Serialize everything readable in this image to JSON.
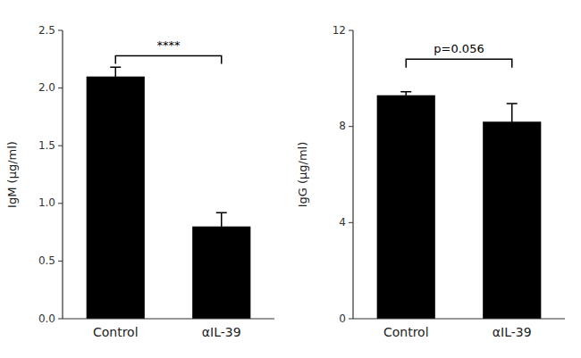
{
  "chart_data": [
    {
      "type": "bar",
      "categories": [
        "Control",
        "αIL-39"
      ],
      "values": [
        2.1,
        0.8
      ],
      "errors": [
        0.08,
        0.12
      ],
      "color": "#000000",
      "ylabel": "IgM (μg/ml)",
      "ylim": [
        0,
        2.5
      ],
      "yticks": [
        {
          "value": 0,
          "label": "0.0"
        },
        0.5,
        {
          "value": 1,
          "label": "1.0"
        },
        1.5,
        {
          "value": 2,
          "label": "2.0"
        },
        2.5
      ],
      "grid": false,
      "annotations": [
        {
          "text": "****",
          "y": 2.33,
          "bracket_y": 2.28,
          "bracket_drop": 0.07
        }
      ]
    },
    {
      "type": "bar",
      "categories": [
        "Control",
        "αIL-39"
      ],
      "values": [
        9.3,
        8.2
      ],
      "errors": [
        0.15,
        0.75
      ],
      "color": "#000000",
      "ylabel": "IgG (μg/ml)",
      "ylim": [
        0,
        12
      ],
      "yticks": [
        0,
        4,
        8,
        12
      ],
      "grid": false,
      "annotations": [
        {
          "text": "p=0.056",
          "y": 11.05,
          "bracket_y": 10.8,
          "bracket_drop": 0.35
        }
      ]
    }
  ]
}
